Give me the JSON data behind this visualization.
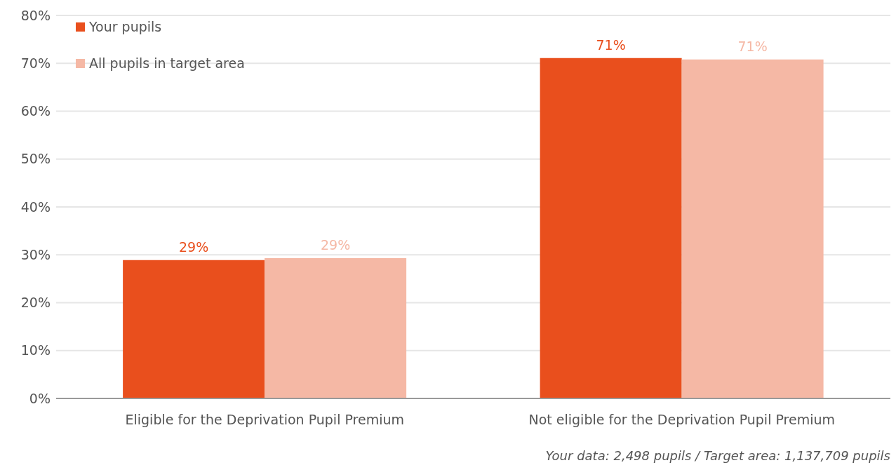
{
  "chart_data": {
    "type": "bar",
    "categories": [
      "Eligible for the Deprivation Pupil Premium",
      "Not eligible for the Deprivation Pupil Premium"
    ],
    "series": [
      {
        "name": "Your pupils",
        "color": "#e94f1d",
        "values": [
          28.9,
          71.1
        ],
        "value_labels": [
          "29%",
          "71%"
        ]
      },
      {
        "name": "All pupils in target area",
        "color": "#f5b8a5",
        "values": [
          29.3,
          70.8
        ],
        "value_labels": [
          "29%",
          "71%"
        ]
      }
    ],
    "ylim": [
      0,
      80
    ],
    "yticks": [
      {
        "value": 0,
        "label": "0%"
      },
      {
        "value": 10,
        "label": "10%"
      },
      {
        "value": 20,
        "label": "20%"
      },
      {
        "value": 30,
        "label": "30%"
      },
      {
        "value": 40,
        "label": "40%"
      },
      {
        "value": 50,
        "label": "50%"
      },
      {
        "value": 60,
        "label": "60%"
      },
      {
        "value": 70,
        "label": "70%"
      },
      {
        "value": 80,
        "label": "80%"
      }
    ],
    "grid": "y",
    "legend": "top left",
    "annotations": [
      "Your data: 2,498 pupils / Target area: 1,137,709 pupils"
    ]
  }
}
